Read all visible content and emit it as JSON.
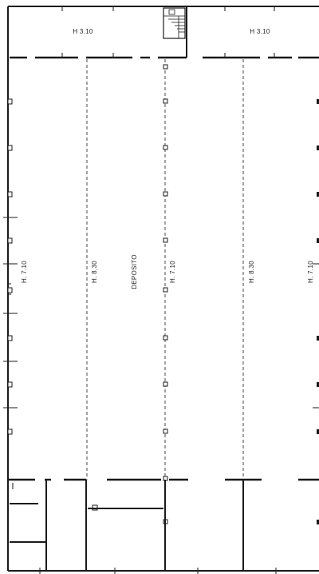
{
  "plan": {
    "rooms": [
      {
        "id": "top-left-room",
        "label": "H 3.10"
      },
      {
        "id": "top-right-room",
        "label": "H 3.10"
      },
      {
        "id": "bay-1",
        "label": "H. 7.10"
      },
      {
        "id": "bay-2",
        "label": "H. 8.30"
      },
      {
        "id": "deposit",
        "label": "DEPOSITO"
      },
      {
        "id": "bay-3",
        "label": "H. 7.10"
      },
      {
        "id": "bay-4",
        "label": "H. 8.30"
      },
      {
        "id": "bay-5",
        "label": "H. 7.10"
      }
    ]
  }
}
